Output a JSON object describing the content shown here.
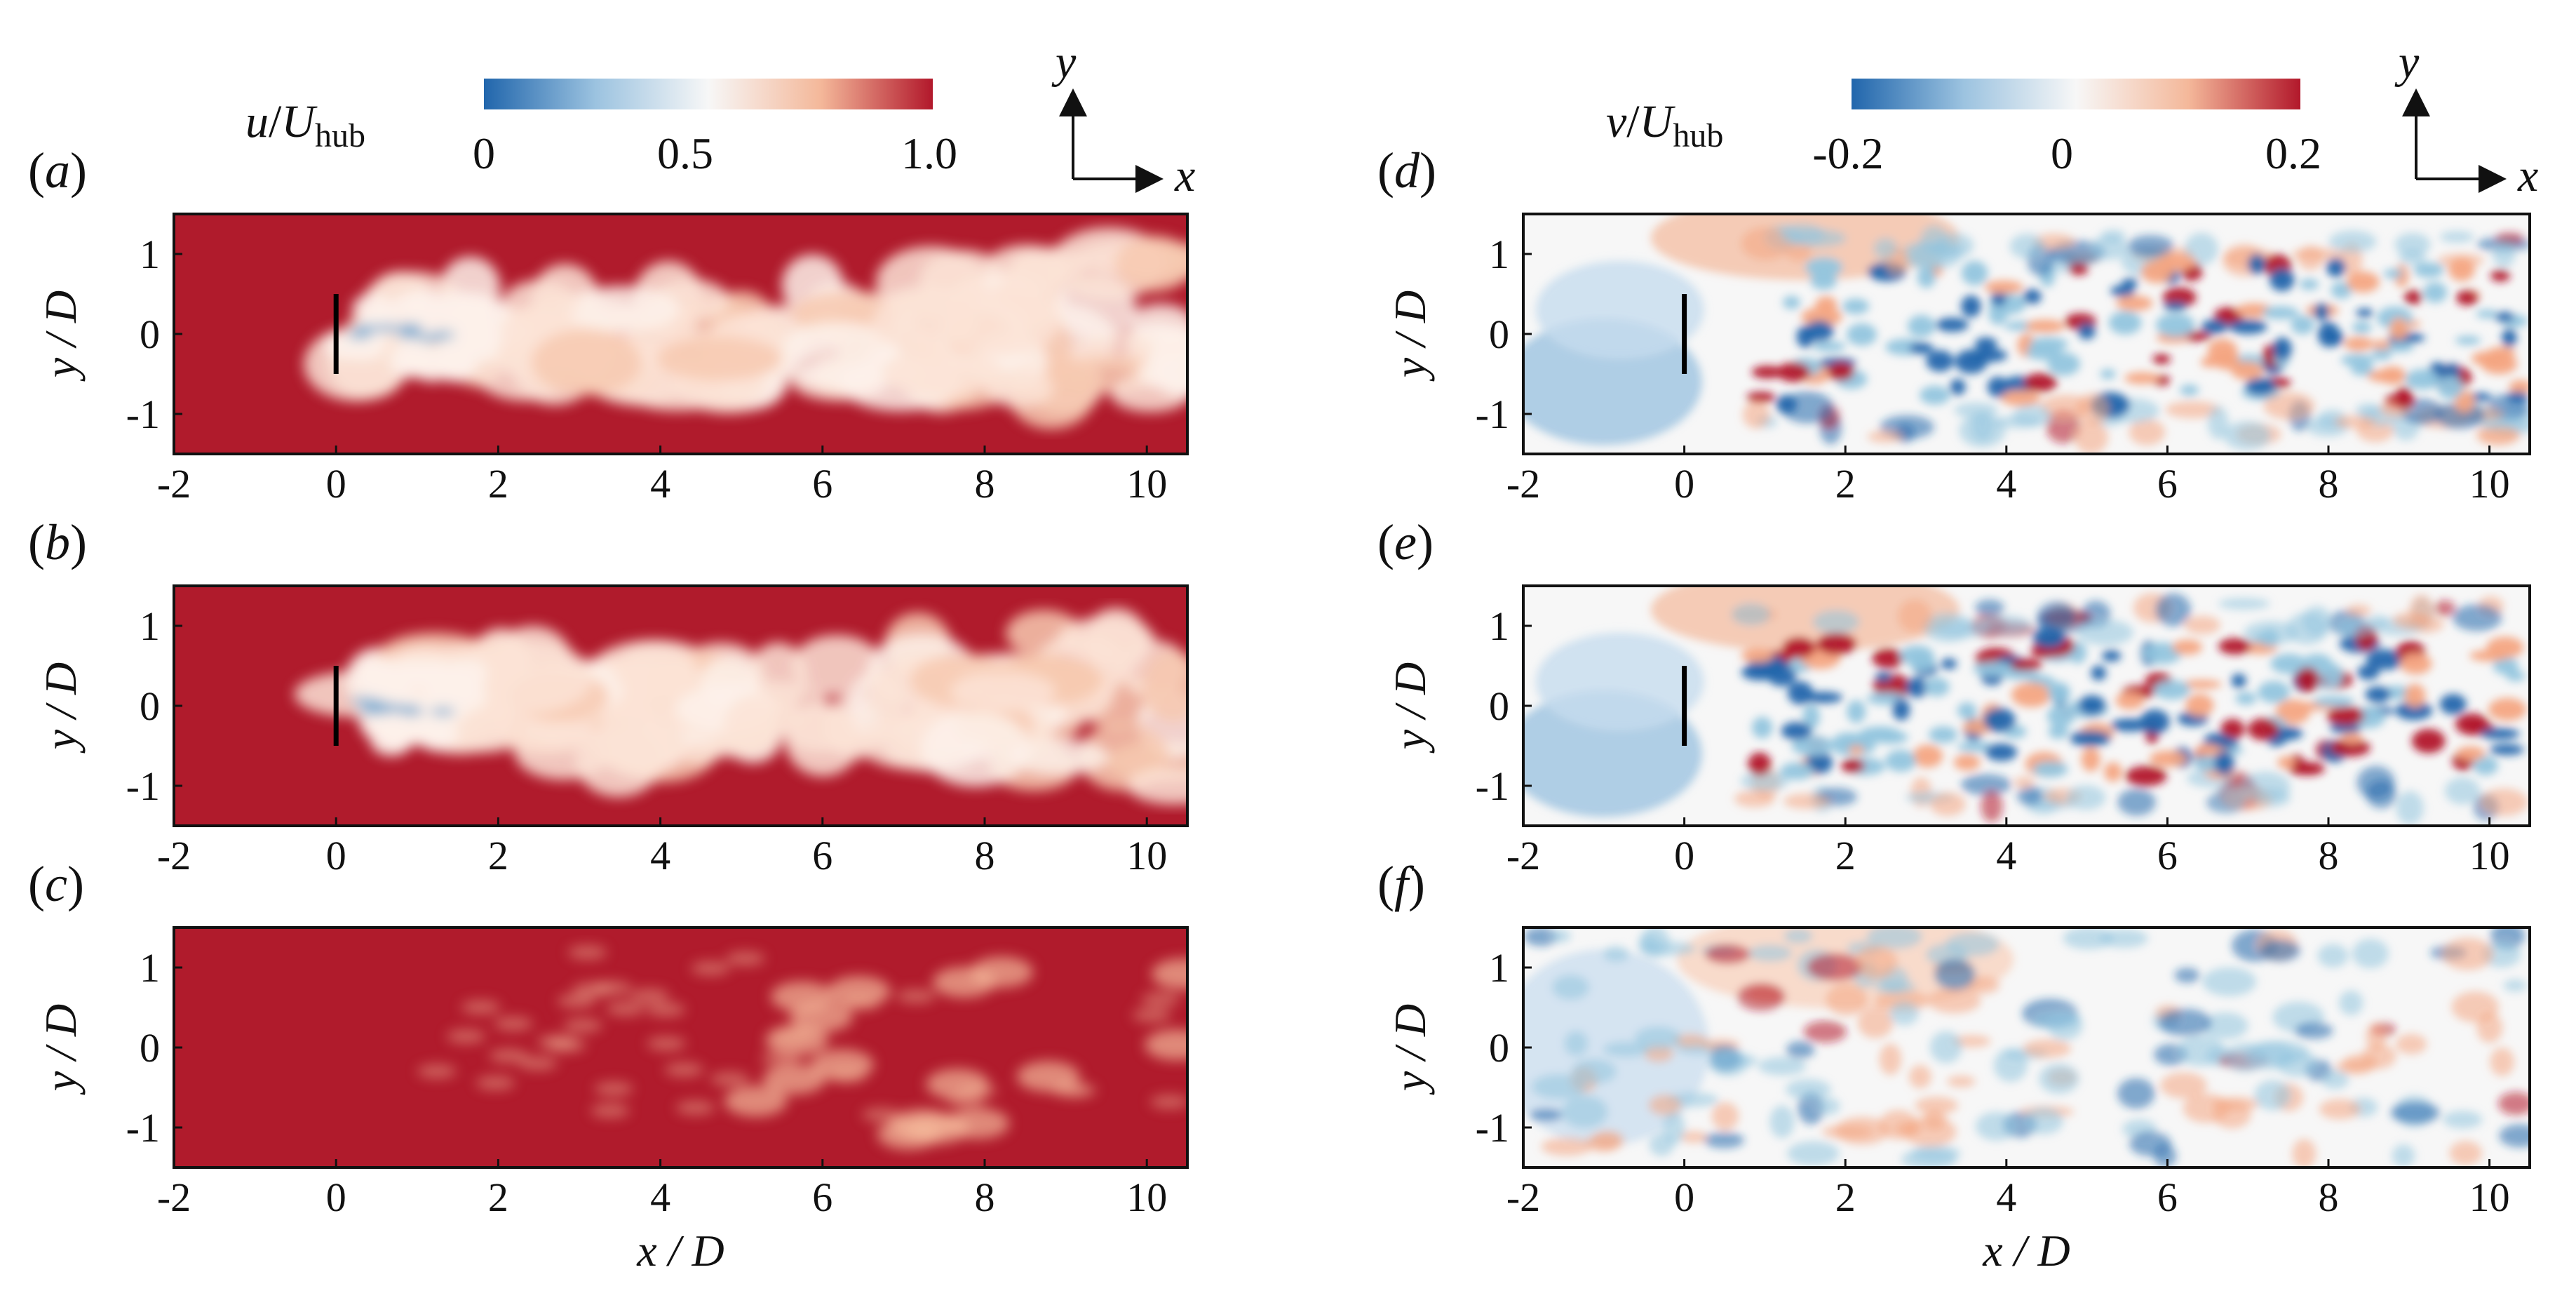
{
  "colors": {
    "u_field": "#b01b2c",
    "blue": "#2166ac",
    "light_blue": "#c6dcee",
    "white": "#f7f7f7",
    "light_red": "#f4b89a",
    "red": "#b2182b",
    "turbine": "#000000"
  },
  "colorbars": [
    {
      "id": "u",
      "var": "u",
      "sep": "/",
      "denom": "U",
      "sub": "hub",
      "ticks": [
        {
          "label": "0",
          "value": 0
        },
        {
          "label": "0.5",
          "value": 0.5
        },
        {
          "label": "1.0",
          "value": 1.0
        }
      ],
      "range": [
        0,
        1.0
      ]
    },
    {
      "id": "v",
      "var": "v",
      "sep": "/",
      "denom": "U",
      "sub": "hub",
      "ticks": [
        {
          "label": "-0.2",
          "value": -0.2
        },
        {
          "label": "0",
          "value": 0
        },
        {
          "label": "0.2",
          "value": 0.2
        }
      ],
      "range": [
        -0.2,
        0.2
      ]
    }
  ],
  "direction_indicator": {
    "y_label": "y",
    "x_label": "x"
  },
  "chart_data": [
    {
      "type": "heatmap",
      "panel": "(a)",
      "field": "u/U_hub",
      "wake": 1.0,
      "xlim": [
        -2,
        10.5
      ],
      "ylim": [
        -1.5,
        1.5
      ],
      "xticks": [
        "-2",
        "0",
        "2",
        "4",
        "6",
        "8",
        "10"
      ],
      "yticks": [
        "1",
        "0",
        "-1"
      ],
      "xlabel": "",
      "ylabel": "y / D",
      "turbine": {
        "x": 0,
        "y": [
          -0.5,
          0.5
        ]
      }
    },
    {
      "type": "heatmap",
      "panel": "(b)",
      "field": "u/U_hub",
      "wake": 1.0,
      "xlim": [
        -2,
        10.5
      ],
      "ylim": [
        -1.5,
        1.5
      ],
      "xticks": [
        "-2",
        "0",
        "2",
        "4",
        "6",
        "8",
        "10"
      ],
      "yticks": [
        "1",
        "0",
        "-1"
      ],
      "xlabel": "",
      "ylabel": "y / D",
      "turbine": {
        "x": 0,
        "y": [
          -0.5,
          0.5
        ]
      }
    },
    {
      "type": "heatmap",
      "panel": "(c)",
      "field": "u/U_hub",
      "wake": 0.0,
      "xlim": [
        -2,
        10.5
      ],
      "ylim": [
        -1.5,
        1.5
      ],
      "xticks": [
        "-2",
        "0",
        "2",
        "4",
        "6",
        "8",
        "10"
      ],
      "yticks": [
        "1",
        "0",
        "-1"
      ],
      "xlabel": "x / D",
      "ylabel": "y / D",
      "turbine": null
    },
    {
      "type": "heatmap",
      "panel": "(d)",
      "field": "v/U_hub",
      "wake": 1.0,
      "xlim": [
        -2,
        10.5
      ],
      "ylim": [
        -1.5,
        1.5
      ],
      "xticks": [
        "-2",
        "0",
        "2",
        "4",
        "6",
        "8",
        "10"
      ],
      "yticks": [
        "1",
        "0",
        "-1"
      ],
      "xlabel": "",
      "ylabel": "y / D",
      "turbine": {
        "x": 0,
        "y": [
          -0.5,
          0.5
        ]
      }
    },
    {
      "type": "heatmap",
      "panel": "(e)",
      "field": "v/U_hub",
      "wake": 1.0,
      "xlim": [
        -2,
        10.5
      ],
      "ylim": [
        -1.5,
        1.5
      ],
      "xticks": [
        "-2",
        "0",
        "2",
        "4",
        "6",
        "8",
        "10"
      ],
      "yticks": [
        "1",
        "0",
        "-1"
      ],
      "xlabel": "",
      "ylabel": "y / D",
      "turbine": {
        "x": 0,
        "y": [
          -0.5,
          0.5
        ]
      }
    },
    {
      "type": "heatmap",
      "panel": "(f)",
      "field": "v/U_hub",
      "wake": 0.0,
      "xlim": [
        -2,
        10.5
      ],
      "ylim": [
        -1.5,
        1.5
      ],
      "xticks": [
        "-2",
        "0",
        "2",
        "4",
        "6",
        "8",
        "10"
      ],
      "yticks": [
        "1",
        "0",
        "-1"
      ],
      "xlabel": "x / D",
      "ylabel": "y / D",
      "turbine": null
    }
  ]
}
